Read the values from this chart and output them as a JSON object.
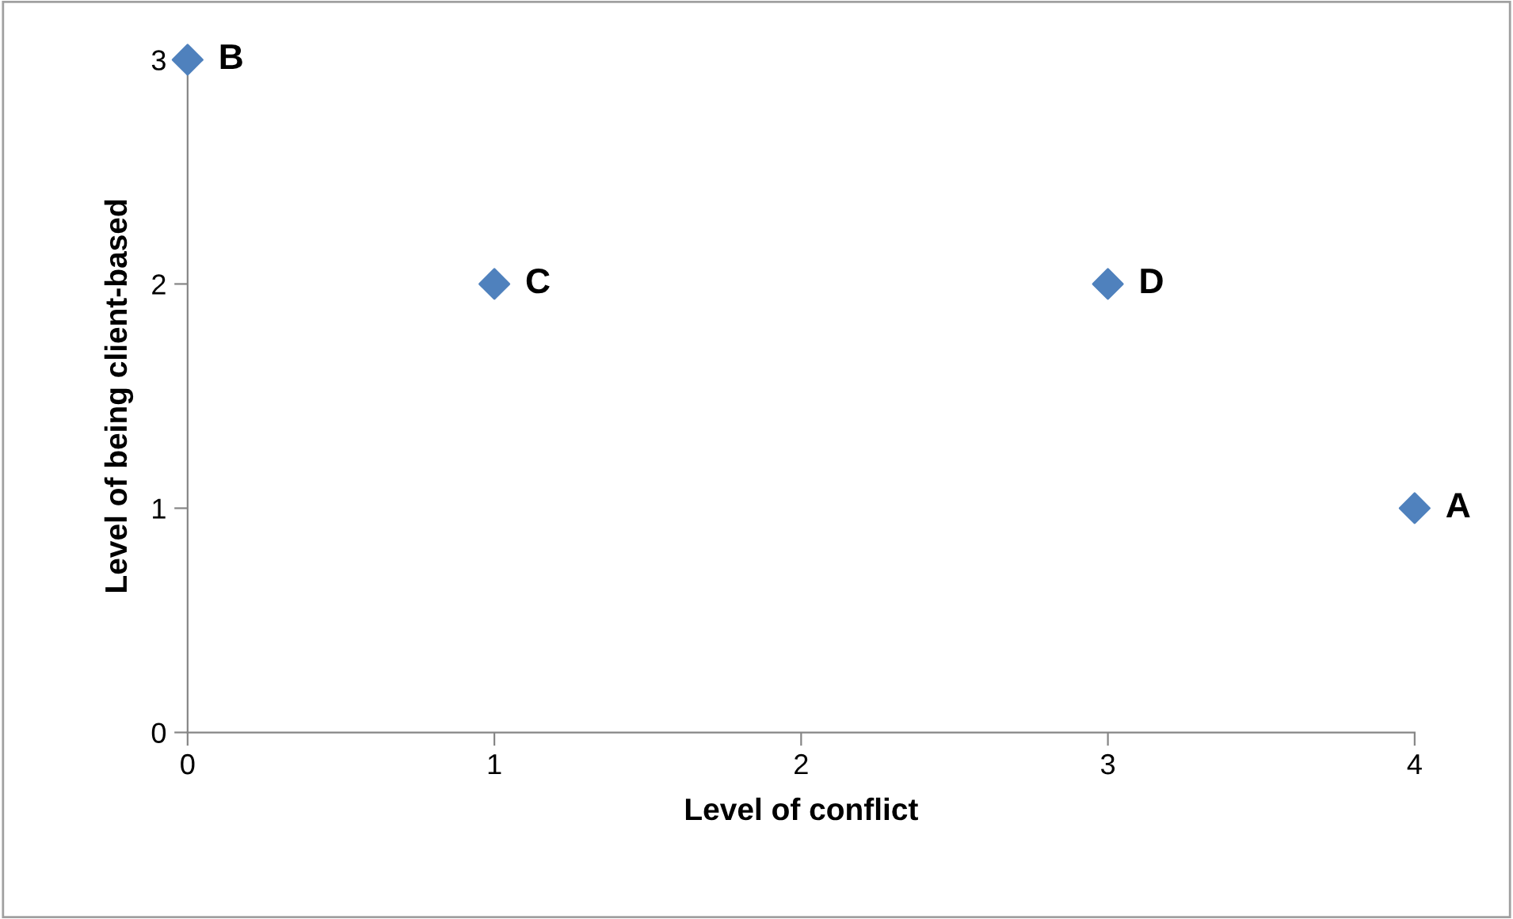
{
  "chart_data": {
    "type": "scatter",
    "xlabel": "Level of conflict",
    "ylabel": "Level of being client-based",
    "x": [
      4,
      0,
      1,
      3
    ],
    "series": [
      {
        "color": "#4f81bd",
        "values": [
          1,
          3,
          2,
          2
        ]
      }
    ],
    "marker": "diamond",
    "grid": false,
    "legend": false,
    "xlim": [
      0,
      4
    ],
    "xticks": [
      0,
      1,
      2,
      3,
      4
    ],
    "ylim": [
      0,
      3
    ],
    "yticks": [
      0,
      1,
      2,
      3
    ],
    "annotations": [
      {
        "text": "A",
        "x": 4,
        "y": 1
      },
      {
        "text": "B",
        "x": 0,
        "y": 3
      },
      {
        "text": "C",
        "x": 1,
        "y": 2
      },
      {
        "text": "D",
        "x": 3,
        "y": 2
      }
    ]
  }
}
